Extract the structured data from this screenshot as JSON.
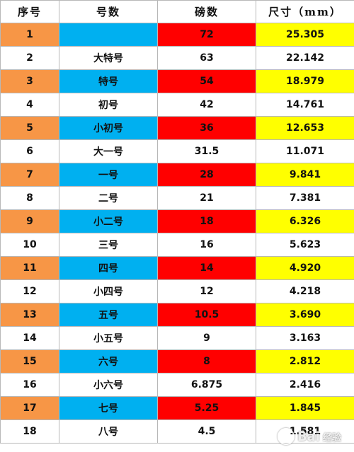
{
  "table": {
    "headers": [
      "序号",
      "号数",
      "磅数",
      "尺寸（mm）"
    ],
    "rows": [
      {
        "no": "1",
        "name": "",
        "pt": "72",
        "mm": "25.305"
      },
      {
        "no": "2",
        "name": "大特号",
        "pt": "63",
        "mm": "22.142"
      },
      {
        "no": "3",
        "name": "特号",
        "pt": "54",
        "mm": "18.979"
      },
      {
        "no": "4",
        "name": "初号",
        "pt": "42",
        "mm": "14.761"
      },
      {
        "no": "5",
        "name": "小初号",
        "pt": "36",
        "mm": "12.653"
      },
      {
        "no": "6",
        "name": "大一号",
        "pt": "31.5",
        "mm": "11.071"
      },
      {
        "no": "7",
        "name": "一号",
        "pt": "28",
        "mm": "9.841"
      },
      {
        "no": "8",
        "name": "二号",
        "pt": "21",
        "mm": "7.381"
      },
      {
        "no": "9",
        "name": "小二号",
        "pt": "18",
        "mm": "6.326"
      },
      {
        "no": "10",
        "name": "三号",
        "pt": "16",
        "mm": "5.623"
      },
      {
        "no": "11",
        "name": "四号",
        "pt": "14",
        "mm": "4.920"
      },
      {
        "no": "12",
        "name": "小四号",
        "pt": "12",
        "mm": "4.218"
      },
      {
        "no": "13",
        "name": "五号",
        "pt": "10.5",
        "mm": "3.690"
      },
      {
        "no": "14",
        "name": "小五号",
        "pt": "9",
        "mm": "3.163"
      },
      {
        "no": "15",
        "name": "六号",
        "pt": "8",
        "mm": "2.812"
      },
      {
        "no": "16",
        "name": "小六号",
        "pt": "6.875",
        "mm": "2.416"
      },
      {
        "no": "17",
        "name": "七号",
        "pt": "5.25",
        "mm": "1.845"
      },
      {
        "no": "18",
        "name": "八号",
        "pt": "4.5",
        "mm": "1.581"
      }
    ]
  },
  "colors": {
    "no_highlight": "#f79646",
    "name_highlight": "#00b0f0",
    "pt_highlight": "#ff0000",
    "mm_highlight": "#ffff00"
  },
  "watermark": {
    "text": "Bai",
    "sub": "经验"
  }
}
